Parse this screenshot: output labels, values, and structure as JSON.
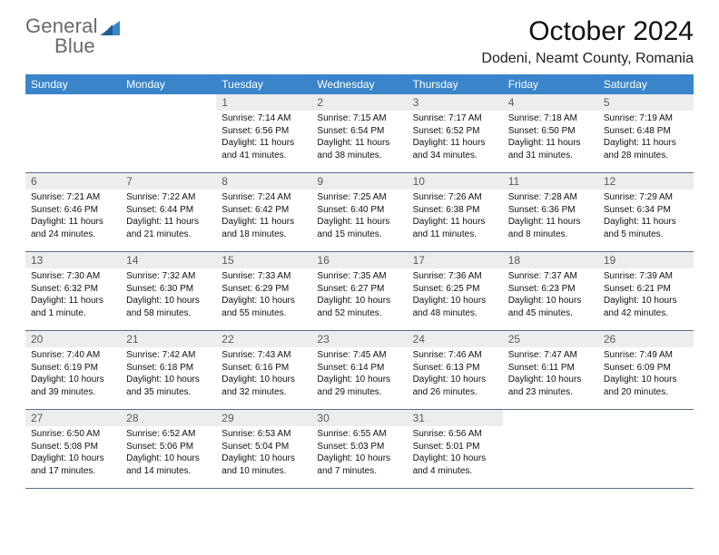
{
  "brand": {
    "word1": "General",
    "word2": "Blue"
  },
  "title": "October 2024",
  "location": "Dodeni, Neamt County, Romania",
  "colors": {
    "header_bg": "#3a85c9",
    "header_text": "#ffffff",
    "daynum_bg": "#eceeee",
    "daynum_text": "#555b5e",
    "cell_border": "#5b6d8a",
    "logo_gray": "#696969",
    "logo_blue": "#3a85c9"
  },
  "weekdays": [
    "Sunday",
    "Monday",
    "Tuesday",
    "Wednesday",
    "Thursday",
    "Friday",
    "Saturday"
  ],
  "weeks": [
    [
      null,
      null,
      {
        "n": "1",
        "sr": "Sunrise: 7:14 AM",
        "ss": "Sunset: 6:56 PM",
        "dl1": "Daylight: 11 hours",
        "dl2": "and 41 minutes."
      },
      {
        "n": "2",
        "sr": "Sunrise: 7:15 AM",
        "ss": "Sunset: 6:54 PM",
        "dl1": "Daylight: 11 hours",
        "dl2": "and 38 minutes."
      },
      {
        "n": "3",
        "sr": "Sunrise: 7:17 AM",
        "ss": "Sunset: 6:52 PM",
        "dl1": "Daylight: 11 hours",
        "dl2": "and 34 minutes."
      },
      {
        "n": "4",
        "sr": "Sunrise: 7:18 AM",
        "ss": "Sunset: 6:50 PM",
        "dl1": "Daylight: 11 hours",
        "dl2": "and 31 minutes."
      },
      {
        "n": "5",
        "sr": "Sunrise: 7:19 AM",
        "ss": "Sunset: 6:48 PM",
        "dl1": "Daylight: 11 hours",
        "dl2": "and 28 minutes."
      }
    ],
    [
      {
        "n": "6",
        "sr": "Sunrise: 7:21 AM",
        "ss": "Sunset: 6:46 PM",
        "dl1": "Daylight: 11 hours",
        "dl2": "and 24 minutes."
      },
      {
        "n": "7",
        "sr": "Sunrise: 7:22 AM",
        "ss": "Sunset: 6:44 PM",
        "dl1": "Daylight: 11 hours",
        "dl2": "and 21 minutes."
      },
      {
        "n": "8",
        "sr": "Sunrise: 7:24 AM",
        "ss": "Sunset: 6:42 PM",
        "dl1": "Daylight: 11 hours",
        "dl2": "and 18 minutes."
      },
      {
        "n": "9",
        "sr": "Sunrise: 7:25 AM",
        "ss": "Sunset: 6:40 PM",
        "dl1": "Daylight: 11 hours",
        "dl2": "and 15 minutes."
      },
      {
        "n": "10",
        "sr": "Sunrise: 7:26 AM",
        "ss": "Sunset: 6:38 PM",
        "dl1": "Daylight: 11 hours",
        "dl2": "and 11 minutes."
      },
      {
        "n": "11",
        "sr": "Sunrise: 7:28 AM",
        "ss": "Sunset: 6:36 PM",
        "dl1": "Daylight: 11 hours",
        "dl2": "and 8 minutes."
      },
      {
        "n": "12",
        "sr": "Sunrise: 7:29 AM",
        "ss": "Sunset: 6:34 PM",
        "dl1": "Daylight: 11 hours",
        "dl2": "and 5 minutes."
      }
    ],
    [
      {
        "n": "13",
        "sr": "Sunrise: 7:30 AM",
        "ss": "Sunset: 6:32 PM",
        "dl1": "Daylight: 11 hours",
        "dl2": "and 1 minute."
      },
      {
        "n": "14",
        "sr": "Sunrise: 7:32 AM",
        "ss": "Sunset: 6:30 PM",
        "dl1": "Daylight: 10 hours",
        "dl2": "and 58 minutes."
      },
      {
        "n": "15",
        "sr": "Sunrise: 7:33 AM",
        "ss": "Sunset: 6:29 PM",
        "dl1": "Daylight: 10 hours",
        "dl2": "and 55 minutes."
      },
      {
        "n": "16",
        "sr": "Sunrise: 7:35 AM",
        "ss": "Sunset: 6:27 PM",
        "dl1": "Daylight: 10 hours",
        "dl2": "and 52 minutes."
      },
      {
        "n": "17",
        "sr": "Sunrise: 7:36 AM",
        "ss": "Sunset: 6:25 PM",
        "dl1": "Daylight: 10 hours",
        "dl2": "and 48 minutes."
      },
      {
        "n": "18",
        "sr": "Sunrise: 7:37 AM",
        "ss": "Sunset: 6:23 PM",
        "dl1": "Daylight: 10 hours",
        "dl2": "and 45 minutes."
      },
      {
        "n": "19",
        "sr": "Sunrise: 7:39 AM",
        "ss": "Sunset: 6:21 PM",
        "dl1": "Daylight: 10 hours",
        "dl2": "and 42 minutes."
      }
    ],
    [
      {
        "n": "20",
        "sr": "Sunrise: 7:40 AM",
        "ss": "Sunset: 6:19 PM",
        "dl1": "Daylight: 10 hours",
        "dl2": "and 39 minutes."
      },
      {
        "n": "21",
        "sr": "Sunrise: 7:42 AM",
        "ss": "Sunset: 6:18 PM",
        "dl1": "Daylight: 10 hours",
        "dl2": "and 35 minutes."
      },
      {
        "n": "22",
        "sr": "Sunrise: 7:43 AM",
        "ss": "Sunset: 6:16 PM",
        "dl1": "Daylight: 10 hours",
        "dl2": "and 32 minutes."
      },
      {
        "n": "23",
        "sr": "Sunrise: 7:45 AM",
        "ss": "Sunset: 6:14 PM",
        "dl1": "Daylight: 10 hours",
        "dl2": "and 29 minutes."
      },
      {
        "n": "24",
        "sr": "Sunrise: 7:46 AM",
        "ss": "Sunset: 6:13 PM",
        "dl1": "Daylight: 10 hours",
        "dl2": "and 26 minutes."
      },
      {
        "n": "25",
        "sr": "Sunrise: 7:47 AM",
        "ss": "Sunset: 6:11 PM",
        "dl1": "Daylight: 10 hours",
        "dl2": "and 23 minutes."
      },
      {
        "n": "26",
        "sr": "Sunrise: 7:49 AM",
        "ss": "Sunset: 6:09 PM",
        "dl1": "Daylight: 10 hours",
        "dl2": "and 20 minutes."
      }
    ],
    [
      {
        "n": "27",
        "sr": "Sunrise: 6:50 AM",
        "ss": "Sunset: 5:08 PM",
        "dl1": "Daylight: 10 hours",
        "dl2": "and 17 minutes."
      },
      {
        "n": "28",
        "sr": "Sunrise: 6:52 AM",
        "ss": "Sunset: 5:06 PM",
        "dl1": "Daylight: 10 hours",
        "dl2": "and 14 minutes."
      },
      {
        "n": "29",
        "sr": "Sunrise: 6:53 AM",
        "ss": "Sunset: 5:04 PM",
        "dl1": "Daylight: 10 hours",
        "dl2": "and 10 minutes."
      },
      {
        "n": "30",
        "sr": "Sunrise: 6:55 AM",
        "ss": "Sunset: 5:03 PM",
        "dl1": "Daylight: 10 hours",
        "dl2": "and 7 minutes."
      },
      {
        "n": "31",
        "sr": "Sunrise: 6:56 AM",
        "ss": "Sunset: 5:01 PM",
        "dl1": "Daylight: 10 hours",
        "dl2": "and 4 minutes."
      },
      null,
      null
    ]
  ]
}
